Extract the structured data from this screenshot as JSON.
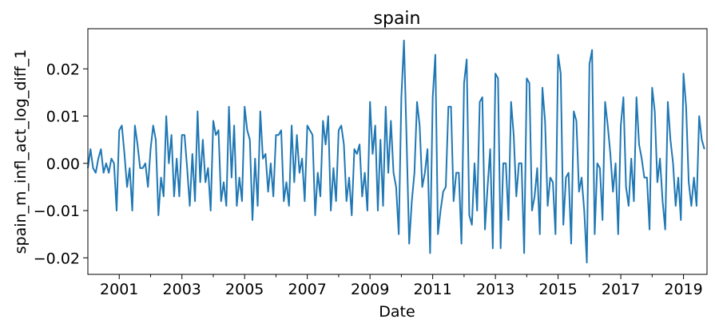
{
  "chart_data": {
    "type": "line",
    "title": "spain",
    "xlabel": "Date",
    "ylabel": "spain_m_infl_act_log_diff_1",
    "xlim": [
      2000.0,
      2019.75
    ],
    "ylim": [
      -0.0235,
      0.0285
    ],
    "x_ticks": [
      2001,
      2003,
      2005,
      2007,
      2009,
      2011,
      2013,
      2015,
      2017,
      2019
    ],
    "x_tick_labels": [
      "2001",
      "2003",
      "2005",
      "2007",
      "2009",
      "2011",
      "2013",
      "2015",
      "2017",
      "2019"
    ],
    "x_minor_ticks": [
      2002,
      2004,
      2006,
      2008,
      2010,
      2012,
      2014,
      2016,
      2018
    ],
    "y_ticks": [
      -0.02,
      -0.01,
      0.0,
      0.01,
      0.02
    ],
    "y_tick_labels": [
      "−0.02",
      "−0.01",
      "0.00",
      "0.01",
      "0.02"
    ],
    "grid": false,
    "line_color": "#1f77b4",
    "series": [
      {
        "x_start": "2000-01",
        "frequency": "monthly",
        "values": [
          -0.001,
          0.003,
          -0.001,
          -0.002,
          0.001,
          0.003,
          -0.002,
          0.0,
          -0.002,
          0.001,
          0.0,
          -0.01,
          0.007,
          0.008,
          0.002,
          -0.005,
          -0.001,
          -0.01,
          0.008,
          0.004,
          -0.001,
          -0.001,
          0.0,
          -0.005,
          0.003,
          0.008,
          0.005,
          -0.011,
          -0.003,
          -0.007,
          0.01,
          0.0,
          0.006,
          -0.007,
          0.001,
          -0.007,
          0.006,
          0.006,
          -0.001,
          -0.009,
          0.002,
          -0.008,
          0.011,
          -0.004,
          0.005,
          -0.004,
          -0.001,
          -0.01,
          0.009,
          0.006,
          0.007,
          -0.008,
          -0.004,
          -0.009,
          0.012,
          -0.003,
          0.008,
          -0.009,
          -0.003,
          -0.008,
          0.012,
          0.007,
          0.005,
          -0.012,
          0.001,
          -0.009,
          0.011,
          0.001,
          0.002,
          -0.006,
          0.0,
          -0.007,
          0.006,
          0.006,
          0.007,
          -0.008,
          -0.004,
          -0.009,
          0.008,
          -0.004,
          0.006,
          -0.002,
          0.001,
          -0.008,
          0.008,
          0.007,
          0.006,
          -0.011,
          -0.002,
          -0.007,
          0.009,
          0.004,
          0.01,
          -0.01,
          -0.001,
          -0.008,
          0.007,
          0.008,
          0.004,
          -0.008,
          -0.003,
          -0.011,
          0.003,
          0.002,
          0.004,
          -0.007,
          -0.002,
          -0.01,
          0.013,
          0.002,
          0.008,
          -0.01,
          0.005,
          -0.009,
          0.012,
          -0.002,
          0.009,
          -0.002,
          -0.005,
          -0.015,
          0.014,
          0.026,
          0.005,
          -0.017,
          -0.008,
          -0.002,
          0.013,
          0.008,
          -0.005,
          -0.002,
          0.003,
          -0.019,
          0.014,
          0.023,
          -0.015,
          -0.01,
          -0.006,
          -0.005,
          0.012,
          0.012,
          -0.008,
          -0.002,
          -0.002,
          -0.017,
          0.017,
          0.022,
          -0.011,
          -0.013,
          0.0,
          -0.01,
          0.013,
          0.014,
          -0.014,
          -0.005,
          0.003,
          -0.018,
          0.019,
          0.018,
          -0.018,
          0.0,
          0.0,
          -0.012,
          0.013,
          0.006,
          -0.007,
          0.0,
          0.0,
          -0.019,
          0.018,
          0.017,
          -0.01,
          -0.007,
          -0.001,
          -0.015,
          0.016,
          0.009,
          -0.009,
          -0.003,
          -0.004,
          -0.015,
          0.023,
          0.019,
          -0.013,
          -0.003,
          -0.002,
          -0.017,
          0.011,
          0.009,
          -0.006,
          -0.003,
          -0.01,
          -0.021,
          0.021,
          0.024,
          -0.015,
          0.0,
          -0.001,
          -0.012,
          0.013,
          0.008,
          0.002,
          -0.006,
          0.0,
          -0.015,
          0.008,
          0.014,
          -0.005,
          -0.009,
          0.001,
          -0.008,
          0.014,
          0.004,
          0.001,
          -0.003,
          -0.003,
          -0.014,
          0.016,
          0.011,
          -0.004,
          0.001,
          -0.008,
          -0.014,
          0.013,
          0.005,
          0.0,
          -0.009,
          -0.003,
          -0.012,
          0.019,
          0.012,
          -0.004,
          -0.009,
          -0.003,
          -0.009,
          0.01,
          0.005,
          0.003
        ]
      }
    ]
  }
}
